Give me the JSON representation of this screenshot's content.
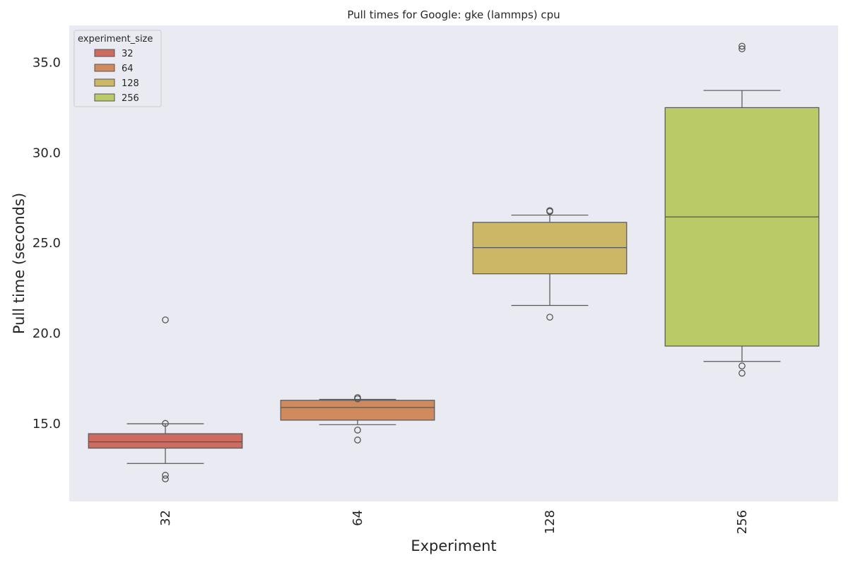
{
  "chart_data": {
    "type": "box",
    "title": "Pull times for Google: gke (lammps) cpu",
    "xlabel": "Experiment",
    "ylabel": "Pull time (seconds)",
    "categories": [
      "32",
      "64",
      "128",
      "256"
    ],
    "ylim": [
      10.7,
      37.05
    ],
    "yticks": [
      15.0,
      20.0,
      25.0,
      30.0,
      35.0
    ],
    "ytick_labels": [
      "15.0",
      "20.0",
      "25.0",
      "30.0",
      "35.0"
    ],
    "grid": false,
    "background": "#eaeaf2",
    "legend": {
      "title": "experiment_size",
      "placement": "top-left",
      "entries": [
        "32",
        "64",
        "128",
        "256"
      ]
    },
    "series": [
      {
        "name": "32",
        "color": "#cd6b61",
        "whisker_low": 12.8,
        "q1": 13.65,
        "median": 14.0,
        "q3": 14.45,
        "whisker_high": 15.0,
        "outliers": [
          20.75,
          12.15,
          11.95,
          15.02
        ]
      },
      {
        "name": "64",
        "color": "#cf8b5d",
        "whisker_low": 14.95,
        "q1": 15.2,
        "median": 15.9,
        "q3": 16.3,
        "whisker_high": 16.35,
        "outliers": [
          14.65,
          14.1,
          16.45,
          16.38
        ]
      },
      {
        "name": "128",
        "color": "#ccb767",
        "whisker_low": 21.55,
        "q1": 23.3,
        "median": 24.75,
        "q3": 26.15,
        "whisker_high": 26.55,
        "outliers": [
          20.9,
          26.8,
          26.75
        ]
      },
      {
        "name": "256",
        "color": "#baca67",
        "whisker_low": 18.45,
        "q1": 19.3,
        "median": 26.45,
        "q3": 32.5,
        "whisker_high": 33.45,
        "outliers": [
          35.9,
          35.75,
          18.2,
          17.8
        ]
      }
    ]
  }
}
